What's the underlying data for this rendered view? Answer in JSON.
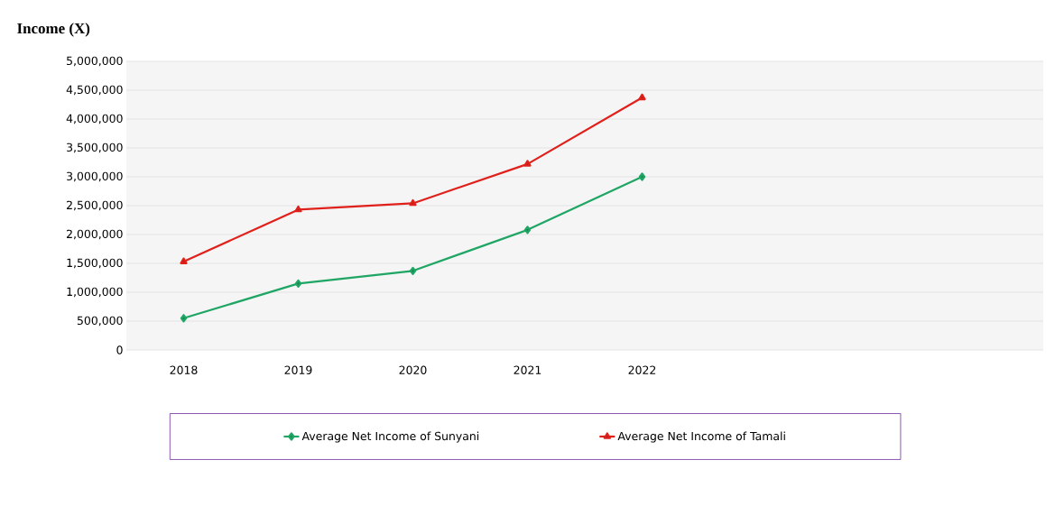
{
  "chart_data": {
    "type": "line",
    "ylabel": "Income (X)",
    "categories": [
      "2018",
      "2019",
      "2020",
      "2021",
      "2022",
      null,
      null,
      null
    ],
    "series": [
      {
        "name": "Average Net Income of Sunyani",
        "color": "#1fa564",
        "marker": "diamond",
        "values": [
          550000,
          1150000,
          1370000,
          2080000,
          3000000,
          null,
          null,
          null
        ]
      },
      {
        "name": "Average Net Income of Tamali",
        "color": "#e0201b",
        "marker": "triangle",
        "values": [
          1530000,
          2430000,
          2540000,
          3220000,
          4370000,
          null,
          null,
          null
        ]
      }
    ],
    "ylim": [
      0,
      5000000
    ],
    "yticks": [
      {
        "value": 0,
        "label": "0"
      },
      {
        "value": 500000,
        "label": "500,000"
      },
      {
        "value": 1000000,
        "label": "1,000,000"
      },
      {
        "value": 1500000,
        "label": "1,500,000"
      },
      {
        "value": 2000000,
        "label": "2,000,000"
      },
      {
        "value": 2500000,
        "label": "2,500,000"
      },
      {
        "value": 3000000,
        "label": "3,000,000"
      },
      {
        "value": 3500000,
        "label": "3,500,000"
      },
      {
        "value": 4000000,
        "label": "4,000,000"
      },
      {
        "value": 4500000,
        "label": "4,500,000"
      },
      {
        "value": 5000000,
        "label": "5,000,000"
      }
    ],
    "grid": "y",
    "legend": "bottom",
    "line_style": "solid"
  }
}
